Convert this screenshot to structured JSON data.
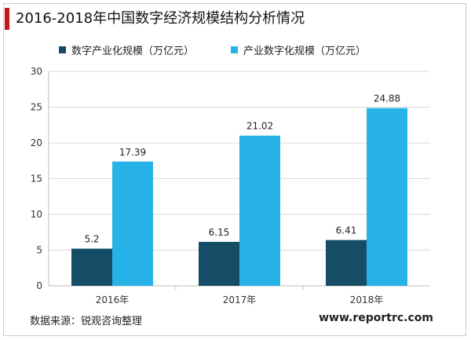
{
  "page_title": "2016-2018年中国数字经济规模结构分析情况",
  "source_note": "数据来源：锐观咨询整理",
  "website": "www.reportrc.com",
  "colors": {
    "title_accent": "#c8161d",
    "series_1": "#154d66",
    "series_2": "#28b3e8",
    "grid": "#d9d9d9"
  },
  "chart_data": {
    "type": "bar",
    "categories": [
      "2016年",
      "2017年",
      "2018年"
    ],
    "series": [
      {
        "name": "数字产业化规模（万亿元）",
        "values": [
          5.2,
          6.15,
          6.41
        ],
        "labels": [
          "5.2",
          "6.15",
          "6.41"
        ]
      },
      {
        "name": "产业数字化规模（万亿元）",
        "values": [
          17.39,
          21.02,
          24.88
        ],
        "labels": [
          "17.39",
          "21.02",
          "24.88"
        ]
      }
    ],
    "ylim": [
      0,
      30
    ],
    "yticks": [
      0,
      5,
      10,
      15,
      20,
      25,
      30
    ],
    "grid": true,
    "legend": "top"
  }
}
